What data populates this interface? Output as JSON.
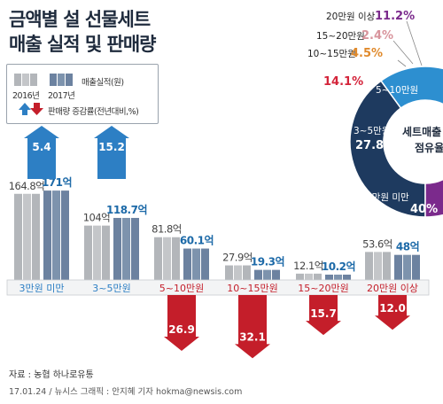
{
  "title": {
    "line1": "금액별 설 선물세트",
    "line2": "매출 실적 및 판매량"
  },
  "legend": {
    "years": [
      "2016년",
      "2017년"
    ],
    "sales_label": "매출실적(원)",
    "change_label": "판매량 증감률(전년대비,%)"
  },
  "chart_data": {
    "type": "bar",
    "categories": [
      "3만원 미만",
      "3~5만원",
      "5~10만원",
      "10~15만원",
      "15~20만원",
      "20만원 이상"
    ],
    "series": [
      {
        "name": "2016년",
        "values": [
          164.8,
          104,
          81.8,
          27.9,
          12.1,
          53.6
        ],
        "labels": [
          "164.8억",
          "104억",
          "81.8억",
          "27.9억",
          "12.1억",
          "53.6억"
        ]
      },
      {
        "name": "2017년",
        "values": [
          171,
          118.7,
          60.1,
          19.3,
          10.2,
          48
        ],
        "labels": [
          "171억",
          "118.7억",
          "60.1억",
          "19.3억",
          "10.2억",
          "48억"
        ]
      }
    ],
    "change_pct": [
      5.4,
      15.2,
      -26.9,
      -32.1,
      -15.7,
      -12.0
    ],
    "change_labels": [
      "5.4",
      "15.2",
      "26.9",
      "32.1",
      "15.7",
      "12.0"
    ],
    "ylabel": "매출실적(원)",
    "colors": {
      "y2016": "#c4c6c9",
      "y2017": "#7d93ad",
      "up": "#2d7fc4",
      "down": "#c41e2a",
      "label2017": "#1d6aa8"
    }
  },
  "donut": {
    "center_line1": "세트매출",
    "center_line2": "점유율",
    "slices": [
      {
        "label": "3만원 미만",
        "pct": 40,
        "pct_label": "40%",
        "color": "#1e3a5f"
      },
      {
        "label": "3~5만원",
        "pct": 27.8,
        "pct_label": "27.8%",
        "color": "#2d8fd0"
      },
      {
        "label": "5~10만원",
        "pct": 14.1,
        "pct_label": "14.1%",
        "color": "#d4243a"
      },
      {
        "label": "10~15만원",
        "pct": 4.5,
        "pct_label": "4.5%",
        "color": "#e08a2c"
      },
      {
        "label": "15~20만원",
        "pct": 2.4,
        "pct_label": "2.4%",
        "color": "#e4a0a8"
      },
      {
        "label": "20만원 이상",
        "pct": 11.2,
        "pct_label": "11.2%",
        "color": "#7b2a8c"
      }
    ]
  },
  "source": "자료 : 농협 하나로유통",
  "credit": "17.01.24 / 뉴시스 그래픽 : 안지혜 기자 hokma@newsis.com"
}
